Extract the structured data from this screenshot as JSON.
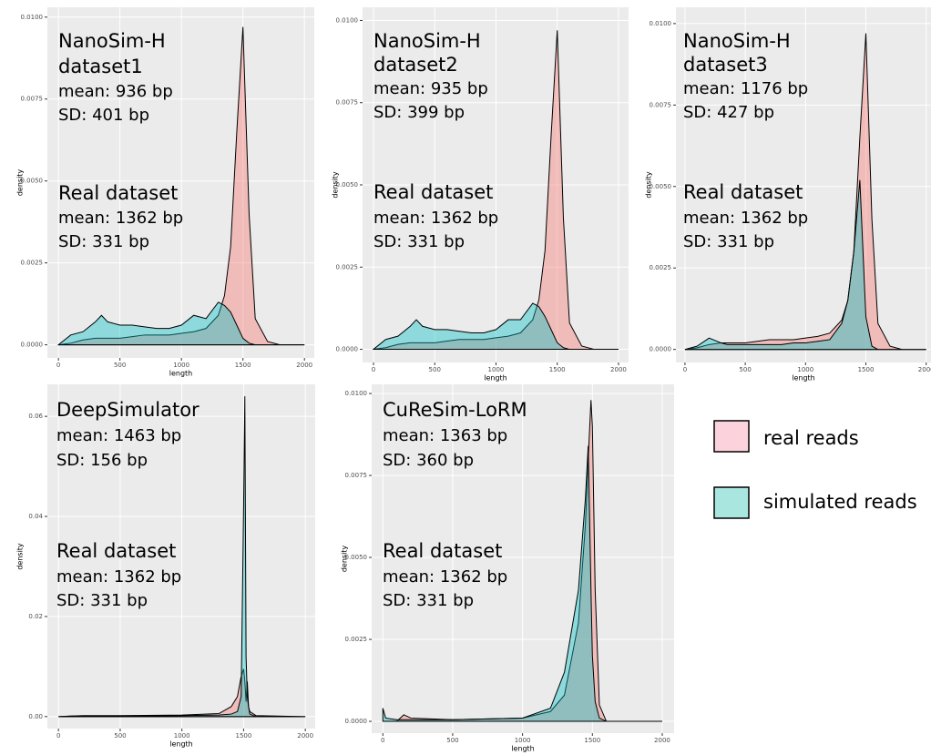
{
  "chart_data": [
    {
      "type": "area",
      "xlabel": "length",
      "ylabel": "density",
      "annotations": [
        "NanoSim-H",
        "dataset1",
        "mean: 936 bp",
        "SD: 401 bp",
        "Real dataset",
        "mean: 1362 bp",
        "SD: 331 bp"
      ],
      "x": [
        0,
        100,
        200,
        300,
        350,
        400,
        500,
        600,
        700,
        800,
        900,
        1000,
        1100,
        1200,
        1300,
        1350,
        1400,
        1450,
        1500,
        1550,
        1600,
        1700,
        1800,
        2000
      ],
      "series": [
        {
          "name": "real reads",
          "color": "#f8766d",
          "values": [
            0,
            5e-05,
            0.00015,
            0.0002,
            0.0002,
            0.0002,
            0.0002,
            0.00025,
            0.0003,
            0.0003,
            0.0003,
            0.00035,
            0.0004,
            0.0005,
            0.0009,
            0.0015,
            0.003,
            0.0065,
            0.0097,
            0.004,
            0.0008,
            0.0001,
            0,
            0
          ]
        },
        {
          "name": "simulated reads",
          "color": "#00bfc4",
          "values": [
            0,
            0.0003,
            0.0004,
            0.0007,
            0.0009,
            0.0007,
            0.0006,
            0.0006,
            0.00055,
            0.0005,
            0.0005,
            0.0006,
            0.0009,
            0.0008,
            0.0013,
            0.0012,
            0.001,
            0.0006,
            0.0002,
            5e-05,
            0,
            0,
            0,
            0
          ]
        }
      ],
      "xlim": [
        -90,
        2080
      ],
      "ylim": [
        -0.0004,
        0.0103
      ],
      "xticks": [
        0,
        500,
        1000,
        1500,
        2000
      ],
      "yticks": [
        {
          "value": 0,
          "label": "0.0000"
        },
        {
          "value": 0.0025,
          "label": "0.0025"
        },
        {
          "value": 0.005,
          "label": "0.0050"
        },
        {
          "value": 0.0075,
          "label": "0.0075"
        },
        {
          "value": 0.01,
          "label": "0.0100"
        }
      ],
      "grid": true
    },
    {
      "type": "area",
      "xlabel": "length",
      "ylabel": "density",
      "annotations": [
        "NanoSim-H",
        "dataset2",
        "mean: 935 bp",
        "SD: 399 bp",
        "Real dataset",
        "mean: 1362 bp",
        "SD: 331 bp"
      ],
      "x": [
        0,
        100,
        200,
        300,
        350,
        400,
        500,
        600,
        700,
        800,
        900,
        1000,
        1100,
        1200,
        1300,
        1350,
        1400,
        1450,
        1500,
        1550,
        1600,
        1700,
        1800,
        2000
      ],
      "series": [
        {
          "name": "real reads",
          "color": "#f8766d",
          "values": [
            0,
            5e-05,
            0.00015,
            0.0002,
            0.0002,
            0.0002,
            0.0002,
            0.00025,
            0.0003,
            0.0003,
            0.0003,
            0.00035,
            0.0004,
            0.0005,
            0.0009,
            0.0015,
            0.003,
            0.0065,
            0.0097,
            0.004,
            0.0008,
            0.0001,
            0,
            0
          ]
        },
        {
          "name": "simulated reads",
          "color": "#00bfc4",
          "values": [
            0,
            0.0003,
            0.0004,
            0.0007,
            0.0009,
            0.0007,
            0.0006,
            0.0006,
            0.00055,
            0.0005,
            0.0005,
            0.0006,
            0.0009,
            0.0009,
            0.0014,
            0.0013,
            0.001,
            0.0006,
            0.0002,
            5e-05,
            0,
            0,
            0,
            0
          ]
        }
      ],
      "xlim": [
        -89,
        2082
      ],
      "ylim": [
        -0.0004,
        0.0104
      ],
      "xticks": [
        0,
        500,
        1000,
        1500,
        2000
      ],
      "yticks": [
        {
          "value": 0,
          "label": "0.0000"
        },
        {
          "value": 0.0025,
          "label": "0.0025"
        },
        {
          "value": 0.005,
          "label": "0.0050"
        },
        {
          "value": 0.0075,
          "label": "0.0075"
        },
        {
          "value": 0.01,
          "label": "0.0100"
        }
      ],
      "grid": true
    },
    {
      "type": "area",
      "xlabel": "length",
      "ylabel": "density",
      "annotations": [
        "NanoSim-H",
        "dataset3",
        "mean: 1176 bp",
        "SD: 427 bp",
        "Real dataset",
        "mean: 1362 bp",
        "SD: 331 bp"
      ],
      "x": [
        0,
        100,
        200,
        300,
        350,
        400,
        500,
        600,
        700,
        800,
        900,
        1000,
        1100,
        1200,
        1300,
        1350,
        1400,
        1450,
        1500,
        1550,
        1600,
        1700,
        1800,
        2000
      ],
      "series": [
        {
          "name": "real reads",
          "color": "#f8766d",
          "values": [
            0,
            5e-05,
            0.00015,
            0.0002,
            0.0002,
            0.0002,
            0.0002,
            0.00025,
            0.0003,
            0.0003,
            0.0003,
            0.00035,
            0.0004,
            0.0005,
            0.0009,
            0.0015,
            0.003,
            0.0065,
            0.0097,
            0.004,
            0.0008,
            0.0001,
            0,
            0
          ]
        },
        {
          "name": "simulated reads",
          "color": "#00bfc4",
          "values": [
            0,
            0.0001,
            0.00035,
            0.0002,
            0.00015,
            0.00015,
            0.00015,
            0.00015,
            0.00015,
            0.00015,
            0.0002,
            0.0002,
            0.00025,
            0.0003,
            0.0008,
            0.0015,
            0.003,
            0.0052,
            0.001,
            0.0001,
            0,
            0,
            0,
            0
          ]
        }
      ],
      "xlim": [
        -75,
        2040
      ],
      "ylim": [
        -0.0004,
        0.0105
      ],
      "xticks": [
        0,
        500,
        1000,
        1500,
        2000
      ],
      "yticks": [
        {
          "value": 0,
          "label": "0.0000"
        },
        {
          "value": 0.0025,
          "label": "0.0025"
        },
        {
          "value": 0.005,
          "label": "0.0050"
        },
        {
          "value": 0.0075,
          "label": "0.0075"
        },
        {
          "value": 0.01,
          "label": "0.0100"
        }
      ],
      "grid": true
    },
    {
      "type": "area",
      "xlabel": "length",
      "ylabel": "density",
      "annotations": [
        "DeepSimulator",
        "mean: 1463 bp",
        "SD: 156 bp",
        "Real dataset",
        "mean: 1362 bp",
        "SD: 331 bp"
      ],
      "x": [
        0,
        100,
        200,
        500,
        1000,
        1300,
        1400,
        1450,
        1480,
        1500,
        1510,
        1520,
        1530,
        1540,
        1550,
        1600,
        2000
      ],
      "series": [
        {
          "name": "real reads",
          "color": "#f8766d",
          "values": [
            0,
            0.0001,
            0.0002,
            0.0002,
            0.0003,
            0.0006,
            0.002,
            0.004,
            0.008,
            0.0095,
            0.007,
            0.003,
            0.007,
            0.002,
            0.001,
            0.0002,
            0
          ]
        },
        {
          "name": "simulated reads",
          "color": "#00bfc4",
          "values": [
            0,
            0.0001,
            0.0001,
            0.0001,
            0.0002,
            0.0003,
            0.0005,
            0.001,
            0.004,
            0.042,
            0.064,
            0.012,
            0.004,
            0.002,
            0.0005,
            0,
            0
          ]
        }
      ],
      "xlim": [
        -90,
        2080
      ],
      "ylim": [
        -0.0024,
        0.0664
      ],
      "xticks": [
        0,
        500,
        1000,
        1500,
        2000
      ],
      "yticks": [
        {
          "value": 0,
          "label": "0.00"
        },
        {
          "value": 0.02,
          "label": "0.02"
        },
        {
          "value": 0.04,
          "label": "0.04"
        },
        {
          "value": 0.06,
          "label": "0.06"
        }
      ],
      "grid": true
    },
    {
      "type": "area",
      "xlabel": "length",
      "ylabel": "density",
      "annotations": [
        "CuReSim-LoRM",
        "mean: 1363 bp",
        "SD: 360 bp",
        "Real dataset",
        "mean: 1362 bp",
        "SD: 331 bp"
      ],
      "x": [
        0,
        20,
        100,
        150,
        200,
        500,
        1000,
        1200,
        1300,
        1400,
        1450,
        1470,
        1490,
        1500,
        1520,
        1550,
        1600,
        2000
      ],
      "series": [
        {
          "name": "real reads",
          "color": "#f8766d",
          "values": [
            0,
            0,
            0,
            0.0002,
            0.0001,
            5e-05,
            0.0001,
            0.0003,
            0.0008,
            0.003,
            0.006,
            0.008,
            0.0098,
            0.009,
            0.004,
            0.0005,
            0,
            0
          ]
        },
        {
          "name": "simulated reads",
          "color": "#00bfc4",
          "values": [
            0.0004,
            0.0001,
            5e-05,
            5e-05,
            5e-05,
            5e-05,
            0.0001,
            0.0004,
            0.0015,
            0.004,
            0.0068,
            0.0084,
            0.004,
            0.002,
            0.0006,
            0.0001,
            0,
            0
          ]
        }
      ],
      "xlim": [
        -80,
        2085
      ],
      "ylim": [
        -0.00036,
        0.01028
      ],
      "xticks": [
        0,
        500,
        1000,
        1500,
        2000
      ],
      "yticks": [
        {
          "value": 0,
          "label": "0.0000"
        },
        {
          "value": 0.0025,
          "label": "0.0025"
        },
        {
          "value": 0.005,
          "label": "0.0050"
        },
        {
          "value": 0.0075,
          "label": "0.0075"
        },
        {
          "value": 0.01,
          "label": "0.0100"
        }
      ],
      "grid": true
    }
  ]
}
